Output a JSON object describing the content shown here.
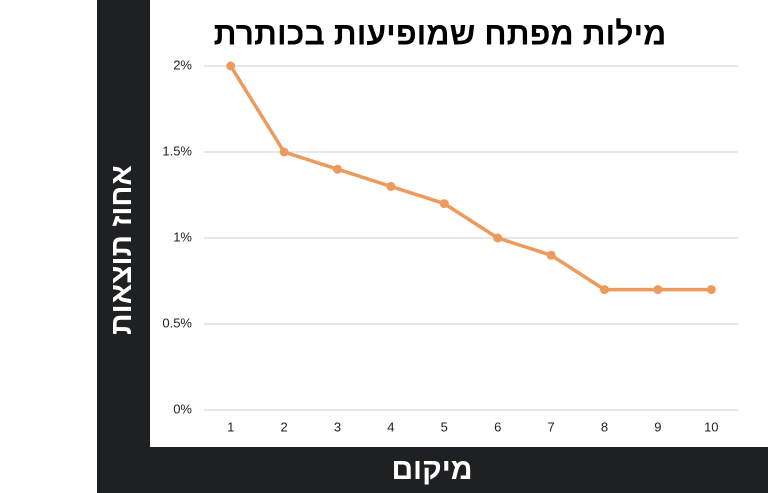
{
  "chart_data": {
    "type": "line",
    "title": "מילות מפתח שמופיעות  בכותרת",
    "x_label": "מיקום",
    "y_label": "אחוז תוצאות",
    "categories": [
      "1",
      "2",
      "3",
      "4",
      "5",
      "6",
      "7",
      "8",
      "9",
      "10"
    ],
    "series": [
      {
        "name": "אחוז תוצאות",
        "color": "#ee9a5c",
        "values": [
          2,
          1.5,
          1.4,
          1.3,
          1.2,
          1.0,
          0.9,
          0.7,
          0.7,
          0.7
        ]
      }
    ],
    "ylim": [
      0,
      2
    ],
    "yticks": [
      {
        "value": 0,
        "label": "0%"
      },
      {
        "value": 0.5,
        "label": "0.5%"
      },
      {
        "value": 1,
        "label": "1%"
      },
      {
        "value": 1.5,
        "label": "1.5%"
      },
      {
        "value": 2,
        "label": "2%"
      }
    ],
    "grid": true
  }
}
